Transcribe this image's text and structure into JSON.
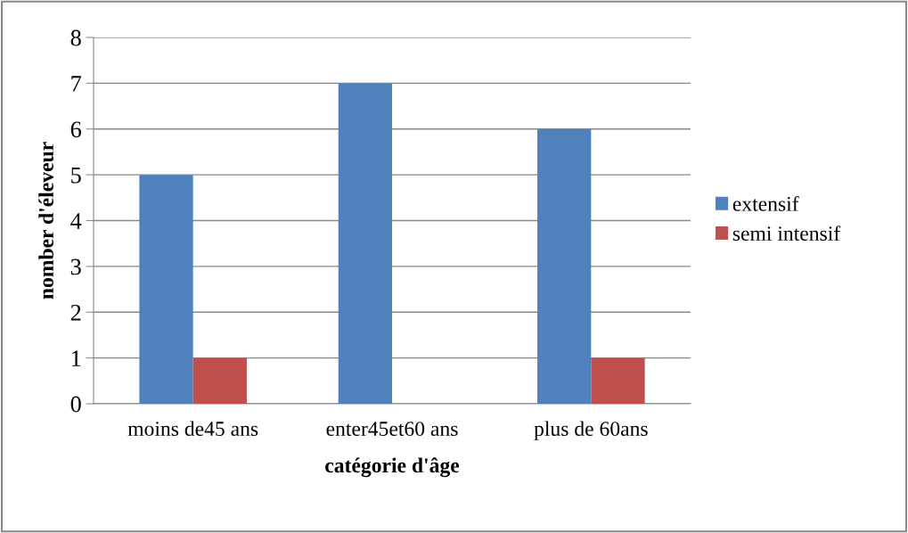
{
  "chart_data": {
    "type": "bar",
    "xlabel": "catégorie d'âge",
    "ylabel": "nomber d'éleveur",
    "categories": [
      "moins de45 ans",
      "enter45et60 ans",
      "plus de 60ans"
    ],
    "series": [
      {
        "name": "extensif",
        "color": "#4f81bd",
        "values": [
          5,
          7,
          6
        ]
      },
      {
        "name": "semi intensif",
        "color": "#c0504d",
        "values": [
          1,
          0,
          1
        ]
      }
    ],
    "ylim": [
      0,
      8
    ],
    "yticks": [
      0,
      1,
      2,
      3,
      4,
      5,
      6,
      7,
      8
    ],
    "grid": "y",
    "legend": "right"
  }
}
